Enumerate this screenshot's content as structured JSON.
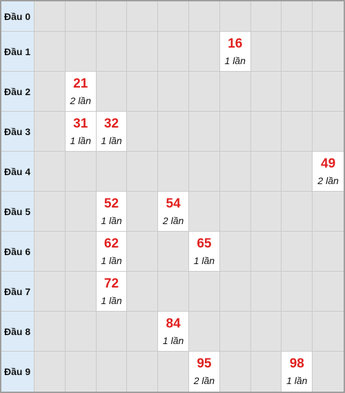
{
  "rows": [
    {
      "label": "Đầu 0",
      "cells": [
        null,
        null,
        null,
        null,
        null,
        null,
        null,
        null,
        null,
        null
      ]
    },
    {
      "label": "Đầu 1",
      "cells": [
        null,
        null,
        null,
        null,
        null,
        null,
        {
          "number": "16",
          "count": "1 lần"
        },
        null,
        null,
        null
      ]
    },
    {
      "label": "Đầu 2",
      "cells": [
        null,
        {
          "number": "21",
          "count": "2 lần"
        },
        null,
        null,
        null,
        null,
        null,
        null,
        null,
        null
      ]
    },
    {
      "label": "Đầu 3",
      "cells": [
        null,
        {
          "number": "31",
          "count": "1 lần"
        },
        {
          "number": "32",
          "count": "1 lần"
        },
        null,
        null,
        null,
        null,
        null,
        null,
        null
      ]
    },
    {
      "label": "Đầu 4",
      "cells": [
        null,
        null,
        null,
        null,
        null,
        null,
        null,
        null,
        null,
        {
          "number": "49",
          "count": "2 lần"
        }
      ]
    },
    {
      "label": "Đầu 5",
      "cells": [
        null,
        null,
        {
          "number": "52",
          "count": "1 lần"
        },
        null,
        {
          "number": "54",
          "count": "2 lần"
        },
        null,
        null,
        null,
        null,
        null
      ]
    },
    {
      "label": "Đầu 6",
      "cells": [
        null,
        null,
        {
          "number": "62",
          "count": "1 lần"
        },
        null,
        null,
        {
          "number": "65",
          "count": "1 lần"
        },
        null,
        null,
        null,
        null
      ]
    },
    {
      "label": "Đầu 7",
      "cells": [
        null,
        null,
        {
          "number": "72",
          "count": "1 lần"
        },
        null,
        null,
        null,
        null,
        null,
        null,
        null
      ]
    },
    {
      "label": "Đầu 8",
      "cells": [
        null,
        null,
        null,
        null,
        {
          "number": "84",
          "count": "1 lần"
        },
        null,
        null,
        null,
        null,
        null
      ]
    },
    {
      "label": "Đầu 9",
      "cells": [
        null,
        null,
        null,
        null,
        null,
        {
          "number": "95",
          "count": "2 lần"
        },
        null,
        null,
        {
          "number": "98",
          "count": "1 lần"
        },
        null
      ]
    }
  ]
}
